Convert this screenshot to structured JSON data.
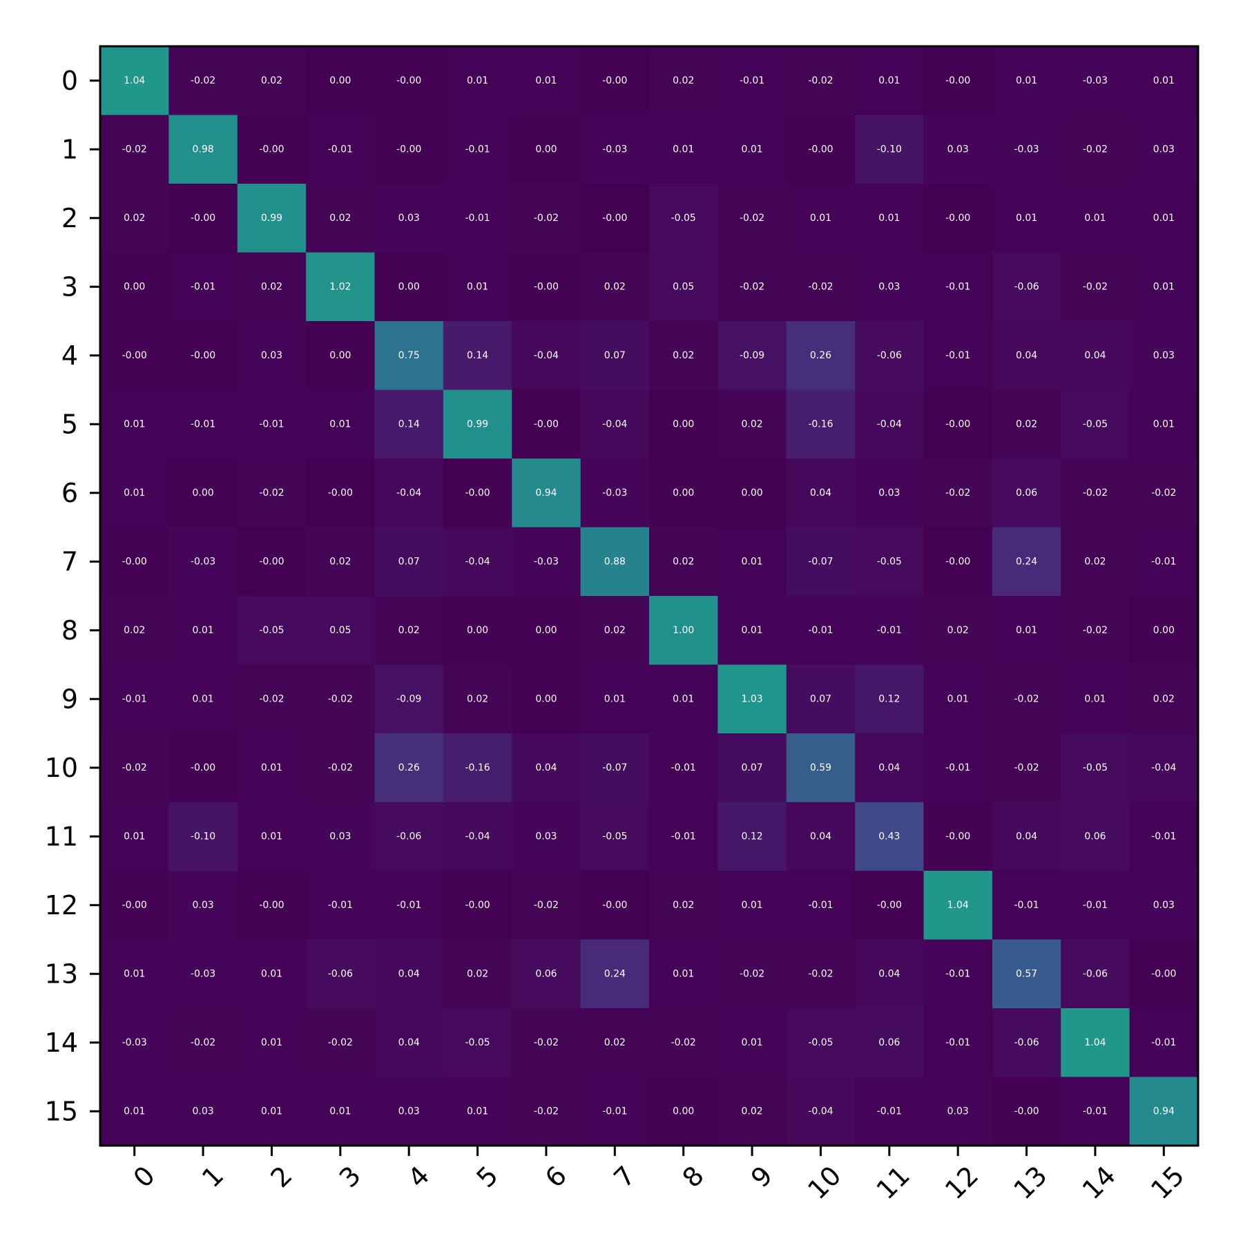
{
  "chart_data": {
    "type": "heatmap",
    "title": "",
    "xlabel": "",
    "ylabel": "",
    "colormap": "viridis",
    "color_range": [
      0,
      2
    ],
    "x_categories": [
      "0",
      "1",
      "2",
      "3",
      "4",
      "5",
      "6",
      "7",
      "8",
      "9",
      "10",
      "11",
      "12",
      "13",
      "14",
      "15"
    ],
    "y_categories": [
      "0",
      "1",
      "2",
      "3",
      "4",
      "5",
      "6",
      "7",
      "8",
      "9",
      "10",
      "11",
      "12",
      "13",
      "14",
      "15"
    ],
    "values": [
      [
        1.04,
        -0.02,
        0.02,
        0.0,
        -0.0,
        0.01,
        0.01,
        -0.0,
        0.02,
        -0.01,
        -0.02,
        0.01,
        -0.0,
        0.01,
        -0.03,
        0.01
      ],
      [
        -0.02,
        0.98,
        -0.0,
        -0.01,
        -0.0,
        -0.01,
        0.0,
        -0.03,
        0.01,
        0.01,
        -0.0,
        -0.1,
        0.03,
        -0.03,
        -0.02,
        0.03
      ],
      [
        0.02,
        -0.0,
        0.99,
        0.02,
        0.03,
        -0.01,
        -0.02,
        -0.0,
        -0.05,
        -0.02,
        0.01,
        0.01,
        -0.0,
        0.01,
        0.01,
        0.01
      ],
      [
        0.0,
        -0.01,
        0.02,
        1.02,
        0.0,
        0.01,
        -0.0,
        0.02,
        0.05,
        -0.02,
        -0.02,
        0.03,
        -0.01,
        -0.06,
        -0.02,
        0.01
      ],
      [
        -0.0,
        -0.0,
        0.03,
        0.0,
        0.75,
        0.14,
        -0.04,
        0.07,
        0.02,
        -0.09,
        0.26,
        -0.06,
        -0.01,
        0.04,
        0.04,
        0.03
      ],
      [
        0.01,
        -0.01,
        -0.01,
        0.01,
        0.14,
        0.99,
        -0.0,
        -0.04,
        0.0,
        0.02,
        -0.16,
        -0.04,
        -0.0,
        0.02,
        -0.05,
        0.01
      ],
      [
        0.01,
        0.0,
        -0.02,
        -0.0,
        -0.04,
        -0.0,
        0.94,
        -0.03,
        0.0,
        0.0,
        0.04,
        0.03,
        -0.02,
        0.06,
        -0.02,
        -0.02
      ],
      [
        -0.0,
        -0.03,
        -0.0,
        0.02,
        0.07,
        -0.04,
        -0.03,
        0.88,
        0.02,
        0.01,
        -0.07,
        -0.05,
        -0.0,
        0.24,
        0.02,
        -0.01
      ],
      [
        0.02,
        0.01,
        -0.05,
        0.05,
        0.02,
        0.0,
        0.0,
        0.02,
        1.0,
        0.01,
        -0.01,
        -0.01,
        0.02,
        0.01,
        -0.02,
        0.0
      ],
      [
        -0.01,
        0.01,
        -0.02,
        -0.02,
        -0.09,
        0.02,
        0.0,
        0.01,
        0.01,
        1.03,
        0.07,
        0.12,
        0.01,
        -0.02,
        0.01,
        0.02
      ],
      [
        -0.02,
        -0.0,
        0.01,
        -0.02,
        0.26,
        -0.16,
        0.04,
        -0.07,
        -0.01,
        0.07,
        0.59,
        0.04,
        -0.01,
        -0.02,
        -0.05,
        -0.04
      ],
      [
        0.01,
        -0.1,
        0.01,
        0.03,
        -0.06,
        -0.04,
        0.03,
        -0.05,
        -0.01,
        0.12,
        0.04,
        0.43,
        -0.0,
        0.04,
        0.06,
        -0.01
      ],
      [
        -0.0,
        0.03,
        -0.0,
        -0.01,
        -0.01,
        -0.0,
        -0.02,
        -0.0,
        0.02,
        0.01,
        -0.01,
        -0.0,
        1.04,
        -0.01,
        -0.01,
        0.03
      ],
      [
        0.01,
        -0.03,
        0.01,
        -0.06,
        0.04,
        0.02,
        0.06,
        0.24,
        0.01,
        -0.02,
        -0.02,
        0.04,
        -0.01,
        0.57,
        -0.06,
        -0.0
      ],
      [
        -0.03,
        -0.02,
        0.01,
        -0.02,
        0.04,
        -0.05,
        -0.02,
        0.02,
        -0.02,
        0.01,
        -0.05,
        0.06,
        -0.01,
        -0.06,
        1.04,
        -0.01
      ],
      [
        0.01,
        0.03,
        0.01,
        0.01,
        0.03,
        0.01,
        -0.02,
        -0.01,
        0.0,
        0.02,
        -0.04,
        -0.01,
        0.03,
        -0.0,
        -0.01,
        0.94
      ]
    ],
    "value_labels": [
      [
        "1.04",
        "-0.02",
        "0.02",
        "0.00",
        "-0.00",
        "0.01",
        "0.01",
        "-0.00",
        "0.02",
        "-0.01",
        "-0.02",
        "0.01",
        "-0.00",
        "0.01",
        "-0.03",
        "0.01"
      ],
      [
        "-0.02",
        "0.98",
        "-0.00",
        "-0.01",
        "-0.00",
        "-0.01",
        "0.00",
        "-0.03",
        "0.01",
        "0.01",
        "-0.00",
        "-0.10",
        "0.03",
        "-0.03",
        "-0.02",
        "0.03"
      ],
      [
        "0.02",
        "-0.00",
        "0.99",
        "0.02",
        "0.03",
        "-0.01",
        "-0.02",
        "-0.00",
        "-0.05",
        "-0.02",
        "0.01",
        "0.01",
        "-0.00",
        "0.01",
        "0.01",
        "0.01"
      ],
      [
        "0.00",
        "-0.01",
        "0.02",
        "1.02",
        "0.00",
        "0.01",
        "-0.00",
        "0.02",
        "0.05",
        "-0.02",
        "-0.02",
        "0.03",
        "-0.01",
        "-0.06",
        "-0.02",
        "0.01"
      ],
      [
        "-0.00",
        "-0.00",
        "0.03",
        "0.00",
        "0.75",
        "0.14",
        "-0.04",
        "0.07",
        "0.02",
        "-0.09",
        "0.26",
        "-0.06",
        "-0.01",
        "0.04",
        "0.04",
        "0.03"
      ],
      [
        "0.01",
        "-0.01",
        "-0.01",
        "0.01",
        "0.14",
        "0.99",
        "-0.00",
        "-0.04",
        "0.00",
        "0.02",
        "-0.16",
        "-0.04",
        "-0.00",
        "0.02",
        "-0.05",
        "0.01"
      ],
      [
        "0.01",
        "0.00",
        "-0.02",
        "-0.00",
        "-0.04",
        "-0.00",
        "0.94",
        "-0.03",
        "0.00",
        "0.00",
        "0.04",
        "0.03",
        "-0.02",
        "0.06",
        "-0.02",
        "-0.02"
      ],
      [
        "-0.00",
        "-0.03",
        "-0.00",
        "0.02",
        "0.07",
        "-0.04",
        "-0.03",
        "0.88",
        "0.02",
        "0.01",
        "-0.07",
        "-0.05",
        "-0.00",
        "0.24",
        "0.02",
        "-0.01"
      ],
      [
        "0.02",
        "0.01",
        "-0.05",
        "0.05",
        "0.02",
        "0.00",
        "0.00",
        "0.02",
        "1.00",
        "0.01",
        "-0.01",
        "-0.01",
        "0.02",
        "0.01",
        "-0.02",
        "0.00"
      ],
      [
        "-0.01",
        "0.01",
        "-0.02",
        "-0.02",
        "-0.09",
        "0.02",
        "0.00",
        "0.01",
        "0.01",
        "1.03",
        "0.07",
        "0.12",
        "0.01",
        "-0.02",
        "0.01",
        "0.02"
      ],
      [
        "-0.02",
        "-0.00",
        "0.01",
        "-0.02",
        "0.26",
        "-0.16",
        "0.04",
        "-0.07",
        "-0.01",
        "0.07",
        "0.59",
        "0.04",
        "-0.01",
        "-0.02",
        "-0.05",
        "-0.04"
      ],
      [
        "0.01",
        "-0.10",
        "0.01",
        "0.03",
        "-0.06",
        "-0.04",
        "0.03",
        "-0.05",
        "-0.01",
        "0.12",
        "0.04",
        "0.43",
        "-0.00",
        "0.04",
        "0.06",
        "-0.01"
      ],
      [
        "-0.00",
        "0.03",
        "-0.00",
        "-0.01",
        "-0.01",
        "-0.00",
        "-0.02",
        "-0.00",
        "0.02",
        "0.01",
        "-0.01",
        "-0.00",
        "1.04",
        "-0.01",
        "-0.01",
        "0.03"
      ],
      [
        "0.01",
        "-0.03",
        "0.01",
        "-0.06",
        "0.04",
        "0.02",
        "0.06",
        "0.24",
        "0.01",
        "-0.02",
        "-0.02",
        "0.04",
        "-0.01",
        "0.57",
        "-0.06",
        "-0.00"
      ],
      [
        "-0.03",
        "-0.02",
        "0.01",
        "-0.02",
        "0.04",
        "-0.05",
        "-0.02",
        "0.02",
        "-0.02",
        "0.01",
        "-0.05",
        "0.06",
        "-0.01",
        "-0.06",
        "1.04",
        "-0.01"
      ],
      [
        "0.01",
        "0.03",
        "0.01",
        "0.01",
        "0.03",
        "0.01",
        "-0.02",
        "-0.01",
        "0.00",
        "0.02",
        "-0.04",
        "-0.01",
        "0.03",
        "-0.00",
        "-0.01",
        "0.94"
      ]
    ],
    "x_tick_rotation_deg": 45,
    "grid": false,
    "legend": "none",
    "cell_text_color": "#ffffff"
  }
}
